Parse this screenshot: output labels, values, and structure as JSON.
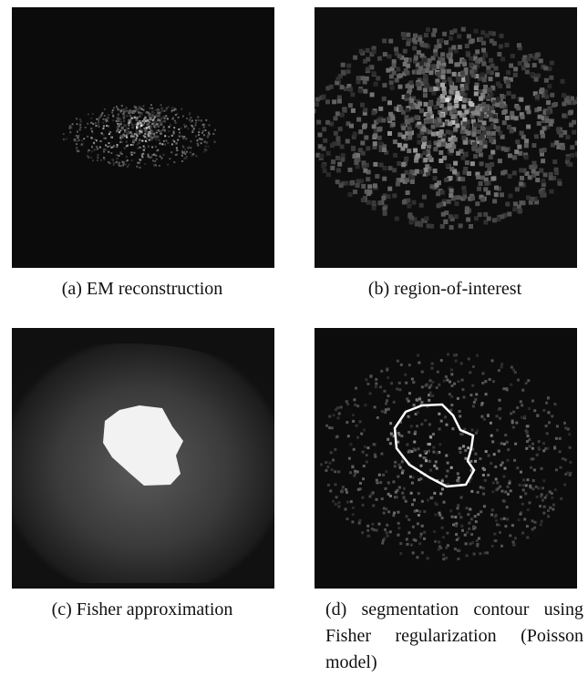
{
  "figure": {
    "panels": [
      {
        "caption": "(a) EM reconstruction"
      },
      {
        "caption": "(b) region-of-interest"
      },
      {
        "caption": "(c) Fisher approximation"
      },
      {
        "caption": "(d) segmentation contour using Fisher regularization (Poisson model)"
      }
    ]
  }
}
